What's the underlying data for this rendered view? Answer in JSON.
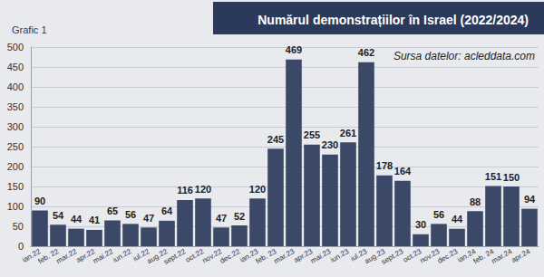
{
  "chart_data": {
    "type": "bar",
    "title": "Numărul demonstrațiilor în Israel (2022/2024)",
    "subtitle": "Grafic 1",
    "annotations": [
      "Sursa datelor: acleddata.com"
    ],
    "categories": [
      "ian.22",
      "feb. 22",
      "mar.22",
      "apr.22",
      "mai.22",
      "iun.22",
      "iul.22",
      "aug.22",
      "sept.22",
      "oct.22",
      "nov.22",
      "dec.22",
      "ian.23",
      "feb. 23",
      "mar.23",
      "apr.23",
      "mai.23",
      "iun.23",
      "iul.23",
      "aug.23",
      "sept.23",
      "oct.23",
      "nov.23",
      "dec.23",
      "ian.24",
      "feb. 24",
      "mar.24",
      "apr.24"
    ],
    "values": [
      90,
      54,
      44,
      41,
      65,
      56,
      47,
      64,
      116,
      120,
      47,
      52,
      120,
      245,
      469,
      255,
      230,
      261,
      462,
      178,
      164,
      30,
      56,
      44,
      88,
      151,
      150,
      94
    ],
    "color": "#3b4868",
    "ylim": [
      0,
      500
    ],
    "yticks": [
      0,
      50,
      100,
      150,
      200,
      250,
      300,
      350,
      400,
      450,
      500
    ],
    "grid": true,
    "data_labels": true
  }
}
